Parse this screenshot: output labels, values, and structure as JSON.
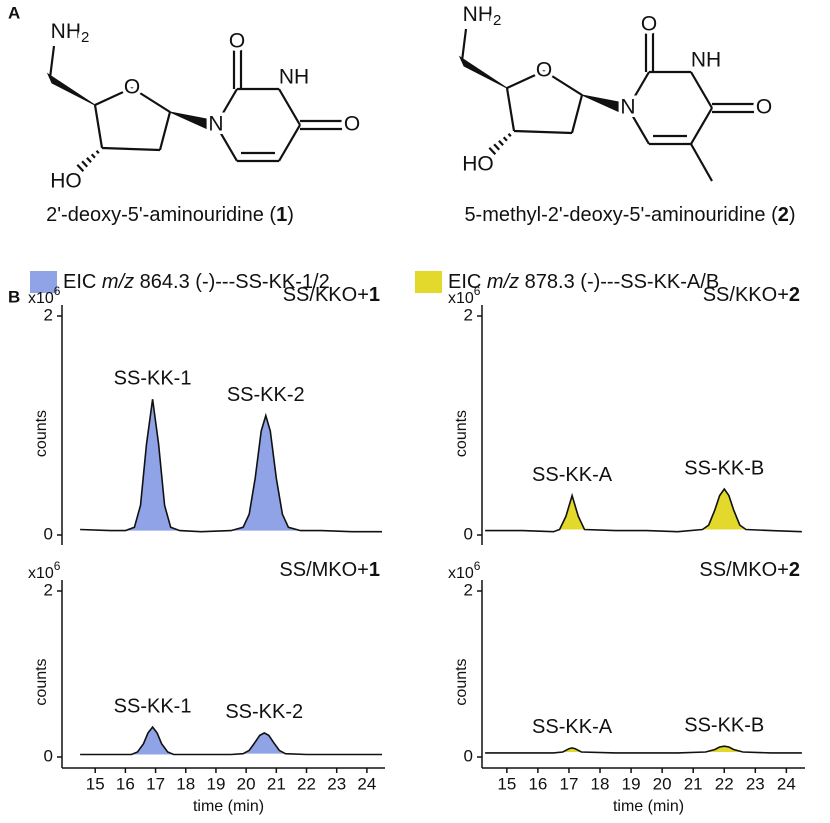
{
  "panel_labels": [
    "A",
    "B"
  ],
  "structures": [
    {
      "atoms": {
        "amine": [
          "NH",
          "2"
        ],
        "ring_o": "O",
        "hydroxyl": "HO",
        "n1": "N",
        "n3": "NH",
        "o2": "O",
        "o4": "O"
      },
      "name": [
        "2'-deoxy-5'-aminouridine (",
        "1",
        ")"
      ]
    },
    {
      "atoms": {
        "amine": [
          "NH",
          "2"
        ],
        "ring_o": "O",
        "hydroxyl": "HO",
        "n1": "N",
        "n3": "NH",
        "o2": "O",
        "o4": "O"
      },
      "name": [
        "5-methyl-2'-deoxy-5'-aminouridine (",
        "2",
        ")"
      ]
    }
  ],
  "legend": [
    {
      "color": "#8fa3e6",
      "parts": [
        "EIC ",
        "m/z",
        " 864.3 (-)---SS-KK-1/2"
      ]
    },
    {
      "color": "#e3d92c",
      "parts": [
        "EIC ",
        "m/z",
        " 878.3 (-)---SS-KK-A/B"
      ]
    }
  ],
  "chart_data": [
    {
      "type": "area",
      "title": [
        "SS/KKO+",
        "1"
      ],
      "y_multiplier": [
        "x10",
        "6"
      ],
      "ylabel": "counts",
      "x": [
        14.5,
        15.5,
        16.0,
        16.3,
        16.5,
        16.7,
        16.9,
        17.1,
        17.3,
        17.5,
        17.8,
        18.5,
        19.5,
        19.9,
        20.1,
        20.3,
        20.5,
        20.65,
        20.8,
        21.0,
        21.2,
        21.4,
        21.8,
        22.5,
        23.5,
        24.5
      ],
      "series": [
        {
          "color": "#8fa3e6",
          "values": [
            0.05,
            0.04,
            0.04,
            0.07,
            0.27,
            0.83,
            1.24,
            0.83,
            0.27,
            0.07,
            0.04,
            0.03,
            0.04,
            0.07,
            0.19,
            0.52,
            0.95,
            1.09,
            0.95,
            0.52,
            0.19,
            0.07,
            0.04,
            0.04,
            0.03,
            0.03
          ]
        }
      ],
      "peak_labels": [
        "SS-KK-1",
        "SS-KK-2"
      ],
      "xlim": [
        13.9,
        24.6
      ],
      "ylim": [
        0,
        2
      ],
      "yticks": [
        0,
        2
      ]
    },
    {
      "type": "area",
      "title": [
        "SS/KKO+",
        "2"
      ],
      "y_multiplier": [
        "x10",
        "6"
      ],
      "ylabel": "counts",
      "x": [
        14.3,
        15.5,
        16.5,
        16.7,
        16.9,
        17.1,
        17.3,
        17.5,
        18.5,
        19.5,
        20.5,
        21.3,
        21.5,
        21.7,
        21.85,
        22.0,
        22.15,
        22.3,
        22.5,
        22.7,
        23.5,
        24.5
      ],
      "series": [
        {
          "color": "#e3d92c",
          "values": [
            0.04,
            0.04,
            0.03,
            0.05,
            0.17,
            0.36,
            0.17,
            0.05,
            0.04,
            0.04,
            0.03,
            0.05,
            0.09,
            0.23,
            0.36,
            0.42,
            0.36,
            0.23,
            0.09,
            0.05,
            0.04,
            0.03
          ]
        }
      ],
      "peak_labels": [
        "SS-KK-A",
        "SS-KK-B"
      ],
      "xlim": [
        14.2,
        24.6
      ],
      "ylim": [
        0,
        2
      ],
      "yticks": [
        0,
        2
      ]
    },
    {
      "type": "area",
      "title": [
        "SS/MKO+",
        "1"
      ],
      "y_multiplier": [
        "x10",
        "6"
      ],
      "ylabel": "counts",
      "xlabel": "time (min)",
      "x": [
        14.5,
        15.5,
        16.2,
        16.4,
        16.6,
        16.75,
        16.9,
        17.05,
        17.2,
        17.4,
        17.6,
        18.5,
        19.5,
        19.9,
        20.1,
        20.3,
        20.45,
        20.6,
        20.75,
        20.9,
        21.1,
        21.3,
        22.0,
        23.0,
        24.5
      ],
      "series": [
        {
          "color": "#8fa3e6",
          "values": [
            0.03,
            0.03,
            0.03,
            0.06,
            0.16,
            0.29,
            0.36,
            0.29,
            0.16,
            0.06,
            0.03,
            0.03,
            0.03,
            0.04,
            0.08,
            0.18,
            0.26,
            0.29,
            0.26,
            0.18,
            0.08,
            0.04,
            0.03,
            0.03,
            0.03
          ]
        }
      ],
      "peak_labels": [
        "SS-KK-1",
        "SS-KK-2"
      ],
      "xlim": [
        13.9,
        24.6
      ],
      "ylim": [
        0,
        2
      ],
      "yticks": [
        0,
        2
      ],
      "xticks": [
        15,
        16,
        17,
        18,
        19,
        20,
        21,
        22,
        23,
        24
      ]
    },
    {
      "type": "area",
      "title": [
        "SS/MKO+",
        "2"
      ],
      "y_multiplier": [
        "x10",
        "6"
      ],
      "ylabel": "counts",
      "xlabel": "time (min)",
      "x": [
        14.3,
        15.5,
        16.5,
        16.8,
        17.0,
        17.1,
        17.2,
        17.4,
        18.5,
        19.5,
        20.5,
        21.4,
        21.7,
        21.85,
        22.0,
        22.15,
        22.3,
        22.6,
        23.5,
        24.5
      ],
      "series": [
        {
          "color": "#e3d92c",
          "values": [
            0.05,
            0.05,
            0.05,
            0.06,
            0.1,
            0.11,
            0.1,
            0.06,
            0.05,
            0.05,
            0.05,
            0.06,
            0.09,
            0.12,
            0.13,
            0.12,
            0.09,
            0.06,
            0.05,
            0.05
          ]
        }
      ],
      "peak_labels": [
        "SS-KK-A",
        "SS-KK-B"
      ],
      "xlim": [
        14.2,
        24.6
      ],
      "ylim": [
        0,
        2
      ],
      "yticks": [
        0,
        2
      ],
      "xticks": [
        15,
        16,
        17,
        18,
        19,
        20,
        21,
        22,
        23,
        24
      ]
    }
  ]
}
